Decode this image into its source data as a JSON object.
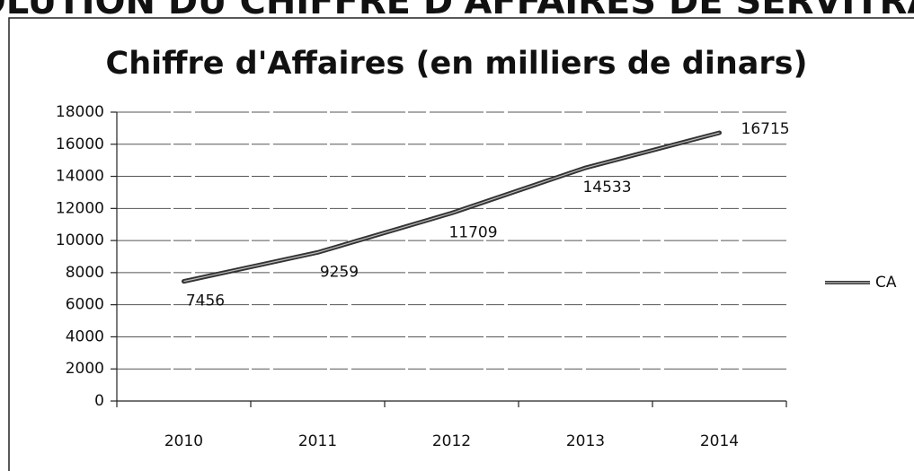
{
  "chart_data": {
    "type": "line",
    "heading": "EVOLUTION DU CHIFFRE D'AFFAIRES DE SERVITRADE",
    "title": "Chiffre d'Affaires (en milliers de dinars)",
    "categories": [
      "2010",
      "2011",
      "2012",
      "2013",
      "2014"
    ],
    "series": [
      {
        "name": "CA",
        "color": "#333333",
        "values": [
          7456,
          9259,
          11709,
          14533,
          16715
        ]
      }
    ],
    "ylim": [
      0,
      18000
    ],
    "yticks": [
      0,
      2000,
      4000,
      6000,
      8000,
      10000,
      12000,
      14000,
      16000,
      18000
    ],
    "grid": true,
    "legend": "right"
  }
}
